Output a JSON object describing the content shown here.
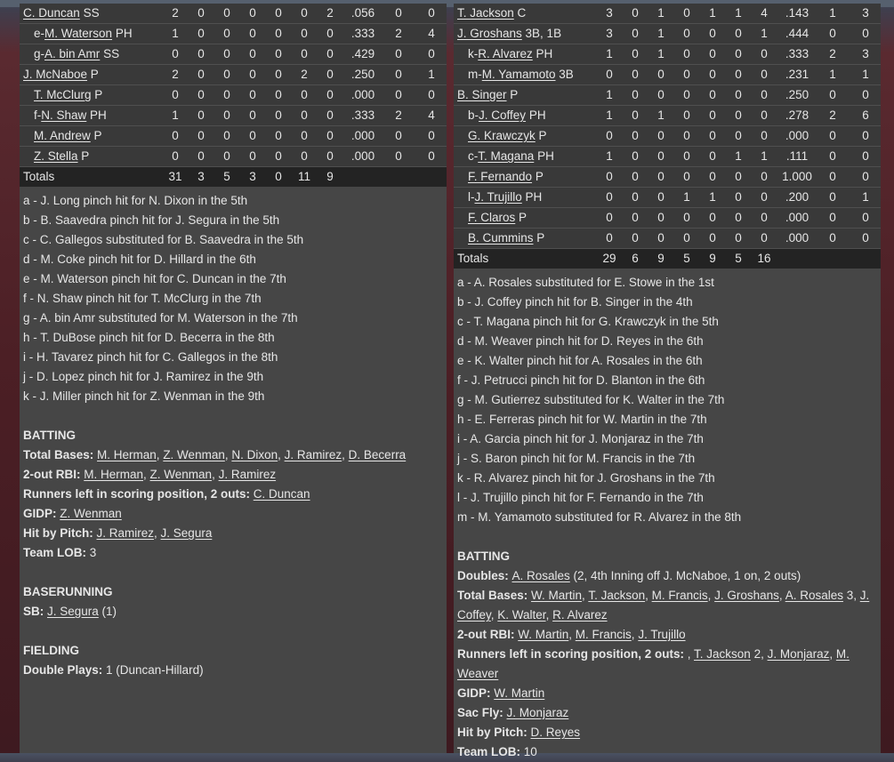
{
  "colors": {
    "panel": "#464646",
    "row": "#393939",
    "totals": "#232323",
    "background": "#4c1f25"
  },
  "left": {
    "rows": [
      {
        "prefix": "",
        "name": "C. Duncan",
        "pos": "SS",
        "sub": false,
        "stats": [
          "2",
          "0",
          "0",
          "0",
          "0",
          "0",
          "2",
          ".056",
          "0",
          "0"
        ]
      },
      {
        "prefix": "e-",
        "name": "M. Waterson",
        "pos": "PH",
        "sub": true,
        "stats": [
          "1",
          "0",
          "0",
          "0",
          "0",
          "0",
          "0",
          ".333",
          "2",
          "4"
        ]
      },
      {
        "prefix": "g-",
        "name": "A. bin Amr",
        "pos": "SS",
        "sub": true,
        "stats": [
          "0",
          "0",
          "0",
          "0",
          "0",
          "0",
          "0",
          ".429",
          "0",
          "0"
        ]
      },
      {
        "prefix": "",
        "name": "J. McNaboe",
        "pos": "P",
        "sub": false,
        "stats": [
          "2",
          "0",
          "0",
          "0",
          "0",
          "2",
          "0",
          ".250",
          "0",
          "1"
        ]
      },
      {
        "prefix": "",
        "name": "T. McClurg",
        "pos": "P",
        "sub": true,
        "stats": [
          "0",
          "0",
          "0",
          "0",
          "0",
          "0",
          "0",
          ".000",
          "0",
          "0"
        ]
      },
      {
        "prefix": "f-",
        "name": "N. Shaw",
        "pos": "PH",
        "sub": true,
        "stats": [
          "1",
          "0",
          "0",
          "0",
          "0",
          "0",
          "0",
          ".333",
          "2",
          "4"
        ]
      },
      {
        "prefix": "",
        "name": "M. Andrew",
        "pos": "P",
        "sub": true,
        "stats": [
          "0",
          "0",
          "0",
          "0",
          "0",
          "0",
          "0",
          ".000",
          "0",
          "0"
        ]
      },
      {
        "prefix": "",
        "name": "Z. Stella",
        "pos": "P",
        "sub": true,
        "stats": [
          "0",
          "0",
          "0",
          "0",
          "0",
          "0",
          "0",
          ".000",
          "0",
          "0"
        ]
      }
    ],
    "totals": {
      "label": "Totals",
      "stats": [
        "31",
        "3",
        "5",
        "3",
        "0",
        "11",
        "9"
      ]
    },
    "notes": [
      [
        {
          "t": "a - J. Long pinch hit for N. Dixon in the 5th"
        }
      ],
      [
        {
          "t": "b - B. Saavedra pinch hit for J. Segura in the 5th"
        }
      ],
      [
        {
          "t": "c - C. Gallegos substituted for B. Saavedra in the 5th"
        }
      ],
      [
        {
          "t": "d - M. Coke pinch hit for D. Hillard in the 6th"
        }
      ],
      [
        {
          "t": "e - M. Waterson pinch hit for C. Duncan in the 7th"
        }
      ],
      [
        {
          "t": "f - N. Shaw pinch hit for T. McClurg in the 7th"
        }
      ],
      [
        {
          "t": "g - A. bin Amr substituted for M. Waterson in the 7th"
        }
      ],
      [
        {
          "t": "h - T. DuBose pinch hit for D. Becerra in the 8th"
        }
      ],
      [
        {
          "t": "i - H. Tavarez pinch hit for C. Gallegos in the 8th"
        }
      ],
      [
        {
          "t": "j - D. Lopez pinch hit for J. Ramirez in the 9th"
        }
      ],
      [
        {
          "t": "k - J. Miller pinch hit for Z. Wenman in the 9th"
        }
      ],
      [],
      [
        {
          "t": "BATTING",
          "b": true
        }
      ],
      [
        {
          "t": "Total Bases: ",
          "b": true
        },
        {
          "t": "M. Herman",
          "l": true
        },
        {
          "t": ", "
        },
        {
          "t": "Z. Wenman",
          "l": true
        },
        {
          "t": ", "
        },
        {
          "t": "N. Dixon",
          "l": true
        },
        {
          "t": ", "
        },
        {
          "t": "J. Ramirez",
          "l": true
        },
        {
          "t": ", "
        },
        {
          "t": "D. Becerra",
          "l": true
        }
      ],
      [
        {
          "t": "2-out RBI: ",
          "b": true
        },
        {
          "t": "M. Herman",
          "l": true
        },
        {
          "t": ", "
        },
        {
          "t": "Z. Wenman",
          "l": true
        },
        {
          "t": ", "
        },
        {
          "t": "J. Ramirez",
          "l": true
        }
      ],
      [
        {
          "t": "Runners left in scoring position, 2 outs: ",
          "b": true
        },
        {
          "t": "C. Duncan",
          "l": true
        }
      ],
      [
        {
          "t": "GIDP: ",
          "b": true
        },
        {
          "t": "Z. Wenman",
          "l": true
        }
      ],
      [
        {
          "t": "Hit by Pitch: ",
          "b": true
        },
        {
          "t": "J. Ramirez",
          "l": true
        },
        {
          "t": ", "
        },
        {
          "t": "J. Segura",
          "l": true
        }
      ],
      [
        {
          "t": "Team LOB: ",
          "b": true
        },
        {
          "t": "3"
        }
      ],
      [],
      [
        {
          "t": "BASERUNNING",
          "b": true
        }
      ],
      [
        {
          "t": "SB: ",
          "b": true
        },
        {
          "t": "J. Segura",
          "l": true
        },
        {
          "t": " (1)"
        }
      ],
      [],
      [
        {
          "t": "FIELDING",
          "b": true
        }
      ],
      [
        {
          "t": "Double Plays: ",
          "b": true
        },
        {
          "t": "1 (Duncan-Hillard)"
        }
      ]
    ]
  },
  "right": {
    "rows": [
      {
        "prefix": "",
        "name": "T. Jackson",
        "pos": "C",
        "sub": false,
        "stats": [
          "3",
          "0",
          "1",
          "0",
          "1",
          "1",
          "4",
          ".143",
          "1",
          "3"
        ]
      },
      {
        "prefix": "",
        "name": "J. Groshans",
        "pos": "3B, 1B",
        "sub": false,
        "stats": [
          "3",
          "0",
          "1",
          "0",
          "0",
          "0",
          "1",
          ".444",
          "0",
          "0"
        ]
      },
      {
        "prefix": "k-",
        "name": "R. Alvarez",
        "pos": "PH",
        "sub": true,
        "stats": [
          "1",
          "0",
          "1",
          "0",
          "0",
          "0",
          "0",
          ".333",
          "2",
          "3"
        ]
      },
      {
        "prefix": "m-",
        "name": "M. Yamamoto",
        "pos": "3B",
        "sub": true,
        "stats": [
          "0",
          "0",
          "0",
          "0",
          "0",
          "0",
          "0",
          ".231",
          "1",
          "1"
        ]
      },
      {
        "prefix": "",
        "name": "B. Singer",
        "pos": "P",
        "sub": false,
        "stats": [
          "1",
          "0",
          "0",
          "0",
          "0",
          "0",
          "0",
          ".250",
          "0",
          "0"
        ]
      },
      {
        "prefix": "b-",
        "name": "J. Coffey",
        "pos": "PH",
        "sub": true,
        "stats": [
          "1",
          "0",
          "1",
          "0",
          "0",
          "0",
          "0",
          ".278",
          "2",
          "6"
        ]
      },
      {
        "prefix": "",
        "name": "G. Krawczyk",
        "pos": "P",
        "sub": true,
        "stats": [
          "0",
          "0",
          "0",
          "0",
          "0",
          "0",
          "0",
          ".000",
          "0",
          "0"
        ]
      },
      {
        "prefix": "c-",
        "name": "T. Magana",
        "pos": "PH",
        "sub": true,
        "stats": [
          "1",
          "0",
          "0",
          "0",
          "0",
          "1",
          "1",
          ".111",
          "0",
          "0"
        ]
      },
      {
        "prefix": "",
        "name": "F. Fernando",
        "pos": "P",
        "sub": true,
        "stats": [
          "0",
          "0",
          "0",
          "0",
          "0",
          "0",
          "0",
          "1.000",
          "0",
          "0"
        ]
      },
      {
        "prefix": "l-",
        "name": "J. Trujillo",
        "pos": "PH",
        "sub": true,
        "stats": [
          "0",
          "0",
          "0",
          "1",
          "1",
          "0",
          "0",
          ".200",
          "0",
          "1"
        ]
      },
      {
        "prefix": "",
        "name": "F. Claros",
        "pos": "P",
        "sub": true,
        "stats": [
          "0",
          "0",
          "0",
          "0",
          "0",
          "0",
          "0",
          ".000",
          "0",
          "0"
        ]
      },
      {
        "prefix": "",
        "name": "B. Cummins",
        "pos": "P",
        "sub": true,
        "stats": [
          "0",
          "0",
          "0",
          "0",
          "0",
          "0",
          "0",
          ".000",
          "0",
          "0"
        ]
      }
    ],
    "totals": {
      "label": "Totals",
      "stats": [
        "29",
        "6",
        "9",
        "5",
        "9",
        "5",
        "16"
      ]
    },
    "notes": [
      [
        {
          "t": "a - A. Rosales substituted for E. Stowe in the 1st"
        }
      ],
      [
        {
          "t": "b - J. Coffey pinch hit for B. Singer in the 4th"
        }
      ],
      [
        {
          "t": "c - T. Magana pinch hit for G. Krawczyk in the 5th"
        }
      ],
      [
        {
          "t": "d - M. Weaver pinch hit for D. Reyes in the 6th"
        }
      ],
      [
        {
          "t": "e - K. Walter pinch hit for A. Rosales in the 6th"
        }
      ],
      [
        {
          "t": "f - J. Petrucci pinch hit for D. Blanton in the 6th"
        }
      ],
      [
        {
          "t": "g - M. Gutierrez substituted for K. Walter in the 7th"
        }
      ],
      [
        {
          "t": "h - E. Ferreras pinch hit for W. Martin in the 7th"
        }
      ],
      [
        {
          "t": "i - A. Garcia pinch hit for J. Monjaraz in the 7th"
        }
      ],
      [
        {
          "t": "j - S. Baron pinch hit for M. Francis in the 7th"
        }
      ],
      [
        {
          "t": "k - R. Alvarez pinch hit for J. Groshans in the 7th"
        }
      ],
      [
        {
          "t": "l - J. Trujillo pinch hit for F. Fernando in the 7th"
        }
      ],
      [
        {
          "t": "m - M. Yamamoto substituted for R. Alvarez in the 8th"
        }
      ],
      [],
      [
        {
          "t": "BATTING",
          "b": true
        }
      ],
      [
        {
          "t": "Doubles: ",
          "b": true
        },
        {
          "t": "A. Rosales",
          "l": true
        },
        {
          "t": " (2, 4th Inning off J. McNaboe, 1 on, 2 outs)"
        }
      ],
      [
        {
          "t": "Total Bases: ",
          "b": true
        },
        {
          "t": "W. Martin",
          "l": true
        },
        {
          "t": ", "
        },
        {
          "t": "T. Jackson",
          "l": true
        },
        {
          "t": ", "
        },
        {
          "t": "M. Francis",
          "l": true
        },
        {
          "t": ", "
        },
        {
          "t": "J. Groshans",
          "l": true
        },
        {
          "t": ", "
        },
        {
          "t": "A. Rosales",
          "l": true
        },
        {
          "t": " 3, "
        },
        {
          "t": "J. Coffey",
          "l": true
        },
        {
          "t": ", "
        },
        {
          "t": "K. Walter",
          "l": true
        },
        {
          "t": ", "
        },
        {
          "t": "R. Alvarez",
          "l": true
        }
      ],
      [
        {
          "t": "2-out RBI: ",
          "b": true
        },
        {
          "t": "W. Martin",
          "l": true
        },
        {
          "t": ", "
        },
        {
          "t": "M. Francis",
          "l": true
        },
        {
          "t": ", "
        },
        {
          "t": "J. Trujillo",
          "l": true
        }
      ],
      [
        {
          "t": "Runners left in scoring position, 2 outs: ",
          "b": true
        },
        {
          "t": ", "
        },
        {
          "t": "T. Jackson",
          "l": true
        },
        {
          "t": " 2, "
        },
        {
          "t": "J. Monjaraz",
          "l": true
        },
        {
          "t": ", "
        },
        {
          "t": "M. Weaver",
          "l": true
        }
      ],
      [
        {
          "t": "GIDP: ",
          "b": true
        },
        {
          "t": "W. Martin",
          "l": true
        }
      ],
      [
        {
          "t": "Sac Fly: ",
          "b": true
        },
        {
          "t": "J. Monjaraz",
          "l": true
        }
      ],
      [
        {
          "t": "Hit by Pitch: ",
          "b": true
        },
        {
          "t": "D. Reyes",
          "l": true
        }
      ],
      [
        {
          "t": "Team LOB: ",
          "b": true
        },
        {
          "t": "10"
        }
      ]
    ]
  }
}
